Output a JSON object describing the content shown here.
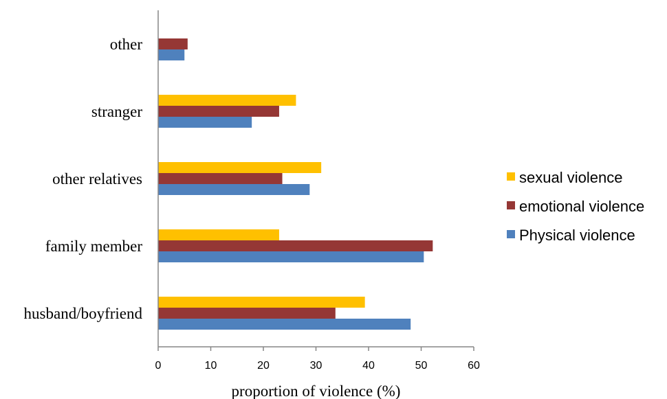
{
  "chart_data": {
    "type": "bar",
    "orientation": "horizontal",
    "categories": [
      "husband/boyfriend",
      "family member",
      "other relatives",
      "stranger",
      "other"
    ],
    "series": [
      {
        "name": "sexual violence",
        "color": "#FFC000",
        "values": [
          39.3,
          23.0,
          31.0,
          26.2,
          null
        ]
      },
      {
        "name": "emotional violence",
        "color": "#953735",
        "values": [
          33.7,
          52.2,
          23.6,
          23.0,
          5.6
        ]
      },
      {
        "name": "Physical violence",
        "color": "#4F81BD",
        "values": [
          48.0,
          50.5,
          28.8,
          17.8,
          5.0
        ]
      }
    ],
    "xlabel": "proportion of violence (%)",
    "ylabel": "",
    "xlim": [
      0,
      60
    ],
    "xticks": [
      "0",
      "10",
      "20",
      "30",
      "40",
      "50",
      "60"
    ],
    "grid": false,
    "legend_position": "right"
  }
}
